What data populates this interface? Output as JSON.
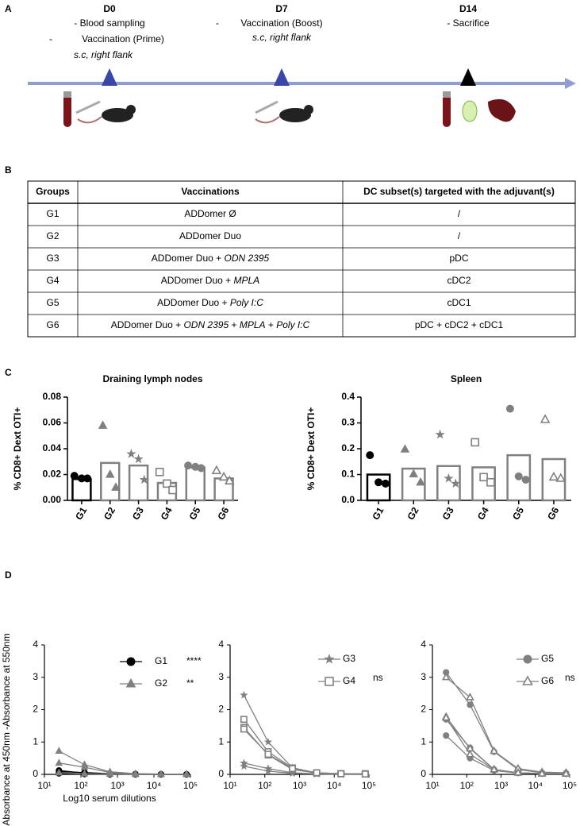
{
  "panel_labels": [
    "A",
    "B",
    "C",
    "D"
  ],
  "panel_a": {
    "timepoints": [
      {
        "day": "D0",
        "events": [
          "- Blood sampling",
          "Vaccination (Prime)"
        ],
        "bullet": "-",
        "route": "s.c, right flank"
      },
      {
        "day": "D7",
        "events": [
          "Vaccination (Boost)"
        ],
        "bullet": "-",
        "route": "s.c, right flank"
      },
      {
        "day": "D14",
        "events": [
          "- Sacrifice"
        ]
      }
    ]
  },
  "table": {
    "header": [
      "Groups",
      "Vaccinations",
      "DC subset(s) targeted with the adjuvant(s)"
    ],
    "rows": [
      [
        "G1",
        [
          "ADDomer Ø"
        ],
        "/"
      ],
      [
        "G2",
        [
          "ADDomer Duo"
        ],
        "/"
      ],
      [
        "G3",
        [
          "ADDomer Duo + ",
          "ODN 2395"
        ],
        "pDC"
      ],
      [
        "G4",
        [
          "ADDomer Duo + ",
          "MPLA"
        ],
        "cDC2"
      ],
      [
        "G5",
        [
          "ADDomer Duo + ",
          "Poly I:C"
        ],
        "cDC1"
      ],
      [
        "G6",
        [
          "ADDomer Duo + ",
          "ODN 2395",
          " + ",
          "MPLA",
          " + ",
          "Poly I:C"
        ],
        "pDC + cDC2 + cDC1"
      ]
    ]
  },
  "chart_data": [
    {
      "type": "bar",
      "title": "Draining lymph nodes",
      "y_label": "% CD8+ Dext OTI+",
      "categories": [
        "G1",
        "G2",
        "G3",
        "G4",
        "G5",
        "G6"
      ],
      "values": [
        0.0165,
        0.029,
        0.027,
        0.0135,
        0.0255,
        0.017
      ],
      "points": [
        [
          0.019,
          0.017,
          0.017
        ],
        [
          0.058,
          0.02,
          0.01
        ],
        [
          0.036,
          0.032,
          0.016
        ],
        [
          0.022,
          0.013,
          0.008
        ],
        [
          0.027,
          0.026,
          0.025
        ],
        [
          0.023,
          0.018,
          0.015
        ]
      ],
      "colors": [
        "#000000",
        "#808080",
        "#808080",
        "#808080",
        "#808080",
        "#808080"
      ],
      "markers": [
        "circle",
        "triangle",
        "star",
        "square-open",
        "circle",
        "triangle-open"
      ],
      "ylim": [
        0,
        0.08
      ],
      "yticks": [
        {
          "value": 0,
          "label": "0.00"
        },
        0.02,
        0.04,
        0.06,
        0.08
      ]
    },
    {
      "type": "bar",
      "title": "Spleen",
      "y_label": "% CD8+ Dext OTI+",
      "categories": [
        "G1",
        "G2",
        "G3",
        "G4",
        "G5",
        "G6"
      ],
      "values": [
        0.1,
        0.123,
        0.133,
        0.128,
        0.175,
        0.16
      ],
      "points": [
        [
          0.175,
          0.07,
          0.065
        ],
        [
          0.198,
          0.102,
          0.07
        ],
        [
          0.255,
          0.085,
          0.065
        ],
        [
          0.225,
          0.09,
          0.07
        ],
        [
          0.355,
          0.093,
          0.08
        ],
        [
          0.313,
          0.09,
          0.085
        ]
      ],
      "colors": [
        "#000000",
        "#808080",
        "#808080",
        "#808080",
        "#808080",
        "#808080"
      ],
      "markers": [
        "circle",
        "triangle",
        "star",
        "square-open",
        "circle",
        "triangle-open"
      ],
      "ylim": [
        0,
        0.4
      ],
      "yticks": [
        {
          "value": 0,
          "label": "0.0"
        },
        0.1,
        0.2,
        0.3,
        0.4
      ]
    },
    {
      "type": "line",
      "y_label": "Absorbance at 450nm -Absorbance at 550nm",
      "x_label": "Log10 serum dilutions",
      "x": [
        25,
        125,
        625,
        3125,
        15625,
        78125
      ],
      "log_x": true,
      "xlim": [
        10,
        100000
      ],
      "xticks": [
        {
          "value": 10,
          "label": "10¹"
        },
        {
          "value": 100,
          "label": "10²"
        },
        {
          "value": 1000,
          "label": "10³"
        },
        {
          "value": 10000,
          "label": "10⁴"
        },
        {
          "value": 100000,
          "label": "10⁵"
        }
      ],
      "ylim": [
        0,
        4
      ],
      "yticks": [
        0,
        1,
        2,
        3,
        4
      ],
      "series": [
        {
          "name": "G1",
          "significance": "****",
          "color": "#000000",
          "marker": "circle",
          "lines": [
            [
              0.12,
              0.04,
              0.01,
              0,
              0,
              0
            ],
            [
              0.08,
              0.06,
              0.02,
              0.01,
              0,
              0
            ],
            [
              0.03,
              0.01,
              0,
              0,
              0,
              0
            ]
          ]
        },
        {
          "name": "G2",
          "significance": "**",
          "color": "#808080",
          "marker": "triangle",
          "lines": [
            [
              0.72,
              0.3,
              0.08,
              0.02,
              0.01,
              0.01
            ],
            [
              0.35,
              0.22,
              0.06,
              0.02,
              0.01,
              0.01
            ],
            [
              0.05,
              0.02,
              0.01,
              0,
              0,
              0
            ]
          ]
        }
      ]
    },
    {
      "type": "line",
      "x": [
        25,
        125,
        625,
        3125,
        15625,
        78125
      ],
      "log_x": true,
      "xlim": [
        10,
        100000
      ],
      "xticks": [
        {
          "value": 10,
          "label": "10¹"
        },
        {
          "value": 100,
          "label": "10²"
        },
        {
          "value": 1000,
          "label": "10³"
        },
        {
          "value": 10000,
          "label": "10⁴"
        },
        {
          "value": 100000,
          "label": "10⁵"
        }
      ],
      "ylim": [
        0,
        4
      ],
      "yticks": [
        0,
        1,
        2,
        3,
        4
      ],
      "series": [
        {
          "name": "G3",
          "color": "#808080",
          "marker": "star",
          "lines": [
            [
              2.45,
              1.0,
              0.2,
              0.05,
              0.02,
              0.01
            ],
            [
              0.35,
              0.18,
              0.05,
              0.02,
              0.01,
              0
            ],
            [
              0.25,
              0.1,
              0.03,
              0.01,
              0,
              0
            ]
          ]
        },
        {
          "name": "G4",
          "significance": "ns",
          "color": "#808080",
          "marker": "square-open",
          "lines": [
            [
              1.7,
              0.7,
              0.2,
              0.05,
              0.02,
              0.02
            ],
            [
              1.45,
              0.6,
              0.15,
              0.04,
              0.02,
              0.02
            ],
            [
              1.4,
              0.62,
              0.18,
              0.05,
              0.02,
              0.01
            ]
          ]
        }
      ]
    },
    {
      "type": "line",
      "x": [
        25,
        125,
        625,
        3125,
        15625,
        78125
      ],
      "log_x": true,
      "xlim": [
        10,
        100000
      ],
      "xticks": [
        {
          "value": 10,
          "label": "10¹"
        },
        {
          "value": 100,
          "label": "10²"
        },
        {
          "value": 1000,
          "label": "10³"
        },
        {
          "value": 10000,
          "label": "10⁴"
        },
        {
          "value": 100000,
          "label": "10⁵"
        }
      ],
      "ylim": [
        0,
        4
      ],
      "yticks": [
        0,
        1,
        2,
        3,
        4
      ],
      "series": [
        {
          "name": "G5",
          "color": "#808080",
          "marker": "circle",
          "lines": [
            [
              3.15,
              2.15,
              0.7,
              0.15,
              0.05,
              0.04
            ],
            [
              1.7,
              0.82,
              0.15,
              0.05,
              0.02,
              0.02
            ],
            [
              1.2,
              0.5,
              0.12,
              0.04,
              0.02,
              0.02
            ]
          ]
        },
        {
          "name": "G6",
          "significance": "ns",
          "color": "#808080",
          "marker": "triangle-open",
          "lines": [
            [
              3.0,
              2.38,
              0.72,
              0.18,
              0.07,
              0.05
            ],
            [
              1.78,
              0.8,
              0.15,
              0.05,
              0.03,
              0.02
            ],
            [
              1.75,
              0.62,
              0.15,
              0.05,
              0.02,
              0.02
            ]
          ]
        }
      ]
    }
  ]
}
